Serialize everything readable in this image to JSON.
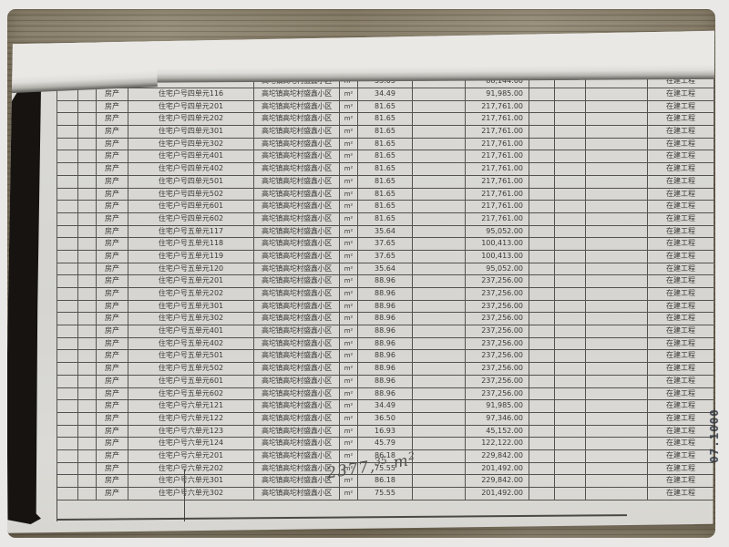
{
  "frame": {
    "background": "#e9e8e6"
  },
  "photo": {
    "wood_base": "#8c8370",
    "paper_base": "#d8d7d3",
    "table_line_color": "#54524e",
    "black_margin_color": "#161310"
  },
  "stamp": {
    "text": "07.1000",
    "color": "#2b3340"
  },
  "handwriting": {
    "full_value": "2377.35 m²",
    "int_part": "2377,",
    "dec_sup": "35",
    "unit_base": "m",
    "unit_sup": "2",
    "color": "#55514e"
  },
  "table": {
    "field_order": [
      "type",
      "unit",
      "location",
      "uom",
      "area",
      "value",
      "status"
    ],
    "rows": [
      {
        "partial": true,
        "type": "",
        "unit": "",
        "location": "高坨镇高坨村盛鑫小区",
        "uom": "m²",
        "area": "33.05",
        "value": "88,144.00",
        "status": "在建工程"
      },
      {
        "type": "房产",
        "unit": "住宅户号四单元116",
        "location": "高坨镇高坨村盛鑫小区",
        "uom": "m²",
        "area": "34.49",
        "value": "91,985.00",
        "status": "在建工程"
      },
      {
        "type": "房产",
        "unit": "住宅户号四单元201",
        "location": "高坨镇高坨村盛鑫小区",
        "uom": "m²",
        "area": "81.65",
        "value": "217,761.00",
        "status": "在建工程"
      },
      {
        "type": "房产",
        "unit": "住宅户号四单元202",
        "location": "高坨镇高坨村盛鑫小区",
        "uom": "m²",
        "area": "81.65",
        "value": "217,761.00",
        "status": "在建工程"
      },
      {
        "type": "房产",
        "unit": "住宅户号四单元301",
        "location": "高坨镇高坨村盛鑫小区",
        "uom": "m²",
        "area": "81.65",
        "value": "217,761.00",
        "status": "在建工程"
      },
      {
        "type": "房产",
        "unit": "住宅户号四单元302",
        "location": "高坨镇高坨村盛鑫小区",
        "uom": "m²",
        "area": "81.65",
        "value": "217,761.00",
        "status": "在建工程"
      },
      {
        "type": "房产",
        "unit": "住宅户号四单元401",
        "location": "高坨镇高坨村盛鑫小区",
        "uom": "m²",
        "area": "81.65",
        "value": "217,761.00",
        "status": "在建工程"
      },
      {
        "type": "房产",
        "unit": "住宅户号四单元402",
        "location": "高坨镇高坨村盛鑫小区",
        "uom": "m²",
        "area": "81.65",
        "value": "217,761.00",
        "status": "在建工程"
      },
      {
        "type": "房产",
        "unit": "住宅户号四单元501",
        "location": "高坨镇高坨村盛鑫小区",
        "uom": "m²",
        "area": "81.65",
        "value": "217,761.00",
        "status": "在建工程"
      },
      {
        "type": "房产",
        "unit": "住宅户号四单元502",
        "location": "高坨镇高坨村盛鑫小区",
        "uom": "m²",
        "area": "81.65",
        "value": "217,761.00",
        "status": "在建工程"
      },
      {
        "type": "房产",
        "unit": "住宅户号四单元601",
        "location": "高坨镇高坨村盛鑫小区",
        "uom": "m²",
        "area": "81.65",
        "value": "217,761.00",
        "status": "在建工程"
      },
      {
        "type": "房产",
        "unit": "住宅户号四单元602",
        "location": "高坨镇高坨村盛鑫小区",
        "uom": "m²",
        "area": "81.65",
        "value": "217,761.00",
        "status": "在建工程"
      },
      {
        "type": "房产",
        "unit": "住宅户号五单元117",
        "location": "高坨镇高坨村盛鑫小区",
        "uom": "m²",
        "area": "35.64",
        "value": "95,052.00",
        "status": "在建工程"
      },
      {
        "type": "房产",
        "unit": "住宅户号五单元118",
        "location": "高坨镇高坨村盛鑫小区",
        "uom": "m²",
        "area": "37.65",
        "value": "100,413.00",
        "status": "在建工程"
      },
      {
        "type": "房产",
        "unit": "住宅户号五单元119",
        "location": "高坨镇高坨村盛鑫小区",
        "uom": "m²",
        "area": "37.65",
        "value": "100,413.00",
        "status": "在建工程"
      },
      {
        "type": "房产",
        "unit": "住宅户号五单元120",
        "location": "高坨镇高坨村盛鑫小区",
        "uom": "m²",
        "area": "35.64",
        "value": "95,052.00",
        "status": "在建工程"
      },
      {
        "type": "房产",
        "unit": "住宅户号五单元201",
        "location": "高坨镇高坨村盛鑫小区",
        "uom": "m²",
        "area": "88.96",
        "value": "237,256.00",
        "status": "在建工程"
      },
      {
        "type": "房产",
        "unit": "住宅户号五单元202",
        "location": "高坨镇高坨村盛鑫小区",
        "uom": "m²",
        "area": "88.96",
        "value": "237,256.00",
        "status": "在建工程"
      },
      {
        "type": "房产",
        "unit": "住宅户号五单元301",
        "location": "高坨镇高坨村盛鑫小区",
        "uom": "m²",
        "area": "88.96",
        "value": "237,256.00",
        "status": "在建工程"
      },
      {
        "type": "房产",
        "unit": "住宅户号五单元302",
        "location": "高坨镇高坨村盛鑫小区",
        "uom": "m²",
        "area": "88.96",
        "value": "237,256.00",
        "status": "在建工程"
      },
      {
        "type": "房产",
        "unit": "住宅户号五单元401",
        "location": "高坨镇高坨村盛鑫小区",
        "uom": "m²",
        "area": "88.96",
        "value": "237,256.00",
        "status": "在建工程"
      },
      {
        "type": "房产",
        "unit": "住宅户号五单元402",
        "location": "高坨镇高坨村盛鑫小区",
        "uom": "m²",
        "area": "88.96",
        "value": "237,256.00",
        "status": "在建工程"
      },
      {
        "type": "房产",
        "unit": "住宅户号五单元501",
        "location": "高坨镇高坨村盛鑫小区",
        "uom": "m²",
        "area": "88.96",
        "value": "237,256.00",
        "status": "在建工程"
      },
      {
        "type": "房产",
        "unit": "住宅户号五单元502",
        "location": "高坨镇高坨村盛鑫小区",
        "uom": "m²",
        "area": "88.96",
        "value": "237,256.00",
        "status": "在建工程"
      },
      {
        "type": "房产",
        "unit": "住宅户号五单元601",
        "location": "高坨镇高坨村盛鑫小区",
        "uom": "m²",
        "area": "88.96",
        "value": "237,256.00",
        "status": "在建工程"
      },
      {
        "type": "房产",
        "unit": "住宅户号五单元602",
        "location": "高坨镇高坨村盛鑫小区",
        "uom": "m²",
        "area": "88.96",
        "value": "237,256.00",
        "status": "在建工程"
      },
      {
        "type": "房产",
        "unit": "住宅户号六单元121",
        "location": "高坨镇高坨村盛鑫小区",
        "uom": "m²",
        "area": "34.49",
        "value": "91,985.00",
        "status": "在建工程"
      },
      {
        "type": "房产",
        "unit": "住宅户号六单元122",
        "location": "高坨镇高坨村盛鑫小区",
        "uom": "m²",
        "area": "36.50",
        "value": "97,346.00",
        "status": "在建工程"
      },
      {
        "type": "房产",
        "unit": "住宅户号六单元123",
        "location": "高坨镇高坨村盛鑫小区",
        "uom": "m²",
        "area": "16.93",
        "value": "45,152.00",
        "status": "在建工程"
      },
      {
        "type": "房产",
        "unit": "住宅户号六单元124",
        "location": "高坨镇高坨村盛鑫小区",
        "uom": "m²",
        "area": "45.79",
        "value": "122,122.00",
        "status": "在建工程"
      },
      {
        "type": "房产",
        "unit": "住宅户号六单元201",
        "location": "高坨镇高坨村盛鑫小区",
        "uom": "m²",
        "area": "86.18",
        "value": "229,842.00",
        "status": "在建工程"
      },
      {
        "type": "房产",
        "unit": "住宅户号六单元202",
        "location": "高坨镇高坨村盛鑫小区",
        "uom": "m²",
        "area": "75.55",
        "value": "201,492.00",
        "status": "在建工程"
      },
      {
        "type": "房产",
        "unit": "住宅户号六单元301",
        "location": "高坨镇高坨村盛鑫小区",
        "uom": "m²",
        "area": "86.18",
        "value": "229,842.00",
        "status": "在建工程"
      },
      {
        "type": "房产",
        "unit": "住宅户号六单元302",
        "location": "高坨镇高坨村盛鑫小区",
        "uom": "m²",
        "area": "75.55",
        "value": "201,492.00",
        "status": "在建工程"
      }
    ]
  }
}
